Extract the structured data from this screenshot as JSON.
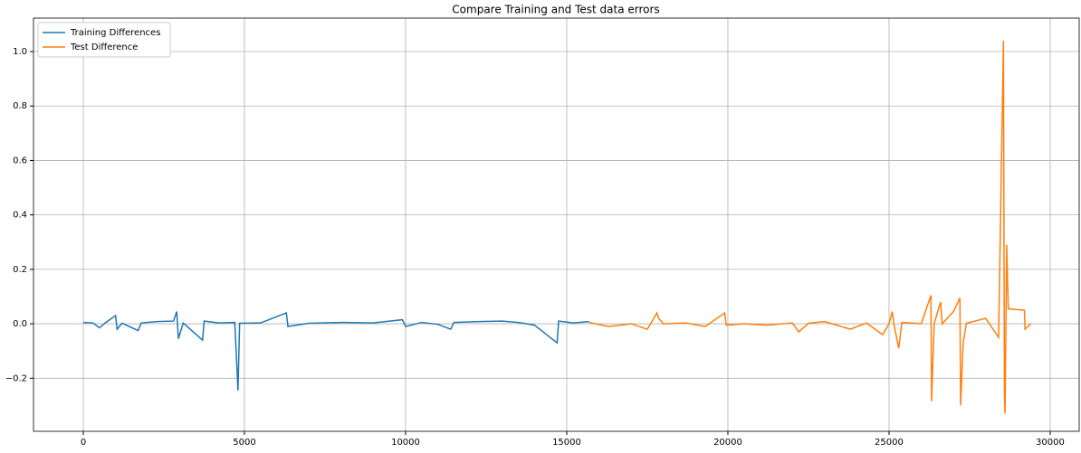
{
  "chart_data": {
    "type": "line",
    "title": "Compare Training and Test data errors",
    "series": [
      {
        "name": "Training Differences",
        "color": "#1f77b4",
        "x": [
          0,
          300,
          500,
          700,
          1000,
          1050,
          1200,
          1700,
          1800,
          2300,
          2800,
          2900,
          2950,
          3100,
          3700,
          3750,
          4200,
          4700,
          4800,
          4850,
          5500,
          6300,
          6350,
          7000,
          8000,
          9000,
          9900,
          10000,
          10500,
          11000,
          11400,
          11500,
          12300,
          13000,
          13500,
          14000,
          14700,
          14750,
          15200,
          15700
        ],
        "values": [
          0.005,
          0.003,
          -0.015,
          0.005,
          0.03,
          -0.02,
          0.002,
          -0.025,
          0.003,
          0.008,
          0.01,
          0.045,
          -0.055,
          0.003,
          -0.06,
          0.01,
          0.003,
          0.005,
          -0.245,
          0.002,
          0.003,
          0.04,
          -0.01,
          0.002,
          0.005,
          0.003,
          0.015,
          -0.01,
          0.005,
          -0.002,
          -0.02,
          0.005,
          0.008,
          0.01,
          0.005,
          -0.005,
          -0.07,
          0.01,
          0.003,
          0.008
        ]
      },
      {
        "name": "Test Difference",
        "color": "#ff7f0e",
        "x": [
          15700,
          16300,
          17000,
          17500,
          17800,
          17850,
          18000,
          18700,
          19300,
          19900,
          19950,
          20500,
          21200,
          22000,
          22200,
          22500,
          23000,
          23800,
          24300,
          24800,
          25000,
          25100,
          25150,
          25300,
          25400,
          26000,
          26300,
          26320,
          26400,
          26600,
          26650,
          27000,
          27200,
          27220,
          27300,
          27400,
          28000,
          28400,
          28550,
          28580,
          28600,
          28650,
          28700,
          29200,
          29220,
          29400
        ],
        "values": [
          0.005,
          -0.01,
          0.0,
          -0.02,
          0.04,
          0.02,
          0.0,
          0.003,
          -0.01,
          0.04,
          -0.005,
          0.0,
          -0.005,
          0.003,
          -0.03,
          0.002,
          0.008,
          -0.02,
          0.003,
          -0.04,
          0.0,
          0.045,
          0.0,
          -0.09,
          0.005,
          0.0,
          0.105,
          -0.285,
          0.0,
          0.08,
          0.0,
          0.045,
          0.095,
          -0.3,
          -0.07,
          0.002,
          0.02,
          -0.05,
          1.04,
          -0.25,
          -0.33,
          0.29,
          0.055,
          0.05,
          -0.02,
          0.0
        ]
      }
    ],
    "xlim": [
      -1545,
      30900
    ],
    "xticks": [
      0,
      5000,
      10000,
      15000,
      20000,
      25000,
      30000
    ],
    "ylim": [
      -0.395,
      1.123
    ],
    "yticks": [
      {
        "value": -0.2,
        "label": "−0.2"
      },
      {
        "value": 0.0,
        "label": "0.0"
      },
      {
        "value": 0.2,
        "label": "0.2"
      },
      {
        "value": 0.4,
        "label": "0.4"
      },
      {
        "value": 0.6,
        "label": "0.6"
      },
      {
        "value": 0.8,
        "label": "0.8"
      },
      {
        "value": 1.0,
        "label": "1.0"
      }
    ],
    "grid": true,
    "legend": "upper left"
  }
}
